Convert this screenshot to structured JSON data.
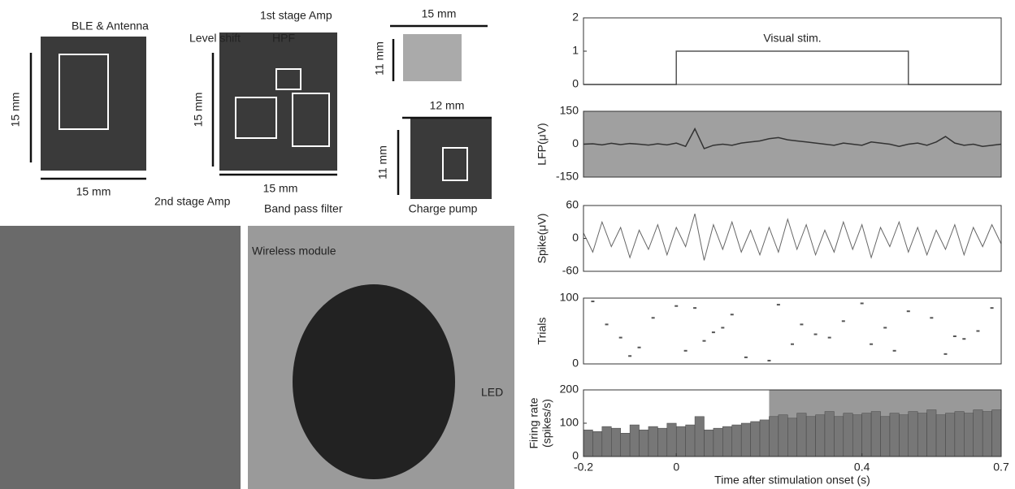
{
  "photos": {
    "labels": [
      "BLE & Antenna",
      "15 mm",
      "15 mm",
      "1st stage Amp",
      "Level shift",
      "HPF",
      "15 mm",
      "15 mm",
      "2nd stage Amp",
      "Band pass filter",
      "15 mm",
      "11 mm",
      "12 mm",
      "11 mm",
      "Charge pump",
      "Wireless module",
      "LED"
    ]
  },
  "chart_data": [
    {
      "type": "line",
      "ylabel": [
        "",
        ""
      ],
      "annotation": "Visual stim.",
      "x": [
        -0.2,
        0,
        0,
        0.5,
        0.5,
        0.7
      ],
      "values": [
        0,
        0,
        1,
        1,
        0,
        0
      ],
      "color": "#555555",
      "xlim": [
        -0.2,
        0.7
      ],
      "ylim": [
        0,
        2
      ],
      "yticks": [
        0,
        1,
        2
      ]
    },
    {
      "type": "line",
      "ylabel": [
        "LFP(μV)",
        ""
      ],
      "x": [
        -0.2,
        -0.18,
        -0.16,
        -0.14,
        -0.12,
        -0.1,
        -0.08,
        -0.06,
        -0.04,
        -0.02,
        0,
        0.02,
        0.04,
        0.06,
        0.08,
        0.1,
        0.12,
        0.14,
        0.16,
        0.18,
        0.2,
        0.22,
        0.24,
        0.26,
        0.28,
        0.3,
        0.32,
        0.34,
        0.36,
        0.38,
        0.4,
        0.42,
        0.44,
        0.46,
        0.48,
        0.5,
        0.52,
        0.54,
        0.56,
        0.58,
        0.6,
        0.62,
        0.64,
        0.66,
        0.68,
        0.7
      ],
      "values": [
        0,
        2,
        -3,
        4,
        -2,
        3,
        0,
        -4,
        2,
        -3,
        5,
        -10,
        70,
        -20,
        -5,
        0,
        -5,
        5,
        10,
        15,
        25,
        30,
        20,
        15,
        10,
        5,
        0,
        -5,
        5,
        0,
        -5,
        10,
        5,
        0,
        -10,
        0,
        5,
        -5,
        10,
        35,
        5,
        -5,
        0,
        -10,
        -5,
        0
      ],
      "color": "#333333",
      "xlim": [
        -0.2,
        0.7
      ],
      "ylim": [
        -150,
        150
      ],
      "yticks": [
        -150,
        0,
        150
      ]
    },
    {
      "type": "line",
      "ylabel": [
        "Spike(μV)",
        ""
      ],
      "x": [
        -0.2,
        -0.18,
        -0.16,
        -0.14,
        -0.12,
        -0.1,
        -0.08,
        -0.06,
        -0.04,
        -0.02,
        0,
        0.02,
        0.04,
        0.06,
        0.08,
        0.1,
        0.12,
        0.14,
        0.16,
        0.18,
        0.2,
        0.22,
        0.24,
        0.26,
        0.28,
        0.3,
        0.32,
        0.34,
        0.36,
        0.38,
        0.4,
        0.42,
        0.44,
        0.46,
        0.48,
        0.5,
        0.52,
        0.54,
        0.56,
        0.58,
        0.6,
        0.62,
        0.64,
        0.66,
        0.68,
        0.7
      ],
      "values": [
        10,
        -25,
        30,
        -15,
        20,
        -35,
        15,
        -20,
        25,
        -30,
        20,
        -15,
        45,
        -40,
        25,
        -20,
        30,
        -25,
        15,
        -30,
        20,
        -25,
        35,
        -20,
        25,
        -30,
        15,
        -25,
        30,
        -20,
        25,
        -35,
        20,
        -15,
        30,
        -25,
        20,
        -30,
        15,
        -20,
        25,
        -30,
        20,
        -15,
        25,
        -10
      ],
      "color": "#666666",
      "xlim": [
        -0.2,
        0.7
      ],
      "ylim": [
        -60,
        60
      ],
      "yticks": [
        -60,
        0,
        60
      ]
    },
    {
      "type": "scatter",
      "ylabel": [
        "Trials",
        ""
      ],
      "x": [
        -0.18,
        -0.12,
        -0.05,
        0.02,
        0.04,
        0.1,
        0.15,
        0.22,
        0.3,
        0.36,
        0.42,
        0.5,
        0.58,
        0.65,
        -0.15,
        -0.08,
        0.0,
        0.06,
        0.12,
        0.2,
        0.27,
        0.33,
        0.4,
        0.47,
        0.55,
        0.62,
        0.68,
        -0.1,
        0.08,
        0.25,
        0.45,
        0.6
      ],
      "values": [
        95,
        40,
        70,
        20,
        85,
        55,
        10,
        90,
        45,
        65,
        30,
        80,
        15,
        50,
        60,
        25,
        88,
        35,
        75,
        5,
        60,
        40,
        92,
        20,
        70,
        38,
        85,
        12,
        48,
        30,
        55,
        42
      ],
      "color": "#555555",
      "xlim": [
        -0.2,
        0.7
      ],
      "ylim": [
        0,
        100
      ],
      "yticks": [
        0,
        100
      ]
    },
    {
      "type": "histogram",
      "ylabel": [
        "Firing rate",
        "(spikes/s)"
      ],
      "xlabel": "Time after stimulation onset (s)",
      "bins": [
        -0.2,
        -0.18,
        -0.16,
        -0.14,
        -0.12,
        -0.1,
        -0.08,
        -0.06,
        -0.04,
        -0.02,
        0,
        0.02,
        0.04,
        0.06,
        0.08,
        0.1,
        0.12,
        0.14,
        0.16,
        0.18,
        0.2,
        0.22,
        0.24,
        0.26,
        0.28,
        0.3,
        0.32,
        0.34,
        0.36,
        0.38,
        0.4,
        0.42,
        0.44,
        0.46,
        0.48,
        0.5,
        0.52,
        0.54,
        0.56,
        0.58,
        0.6,
        0.62,
        0.64,
        0.66,
        0.68,
        0.7
      ],
      "values": [
        80,
        75,
        90,
        85,
        70,
        95,
        80,
        90,
        85,
        100,
        90,
        95,
        120,
        80,
        85,
        90,
        95,
        100,
        105,
        110,
        120,
        125,
        115,
        130,
        120,
        125,
        135,
        120,
        130,
        125,
        130,
        135,
        120,
        130,
        125,
        135,
        130,
        140,
        125,
        130,
        135,
        130,
        140,
        135,
        140
      ],
      "color": "#777777",
      "shaded_xrange": [
        0.2,
        0.7
      ],
      "xlim": [
        -0.2,
        0.7
      ],
      "ylim": [
        0,
        200
      ],
      "yticks": [
        0,
        100,
        200
      ],
      "xticks": [
        -0.2,
        0,
        0.4,
        0.7
      ]
    }
  ]
}
